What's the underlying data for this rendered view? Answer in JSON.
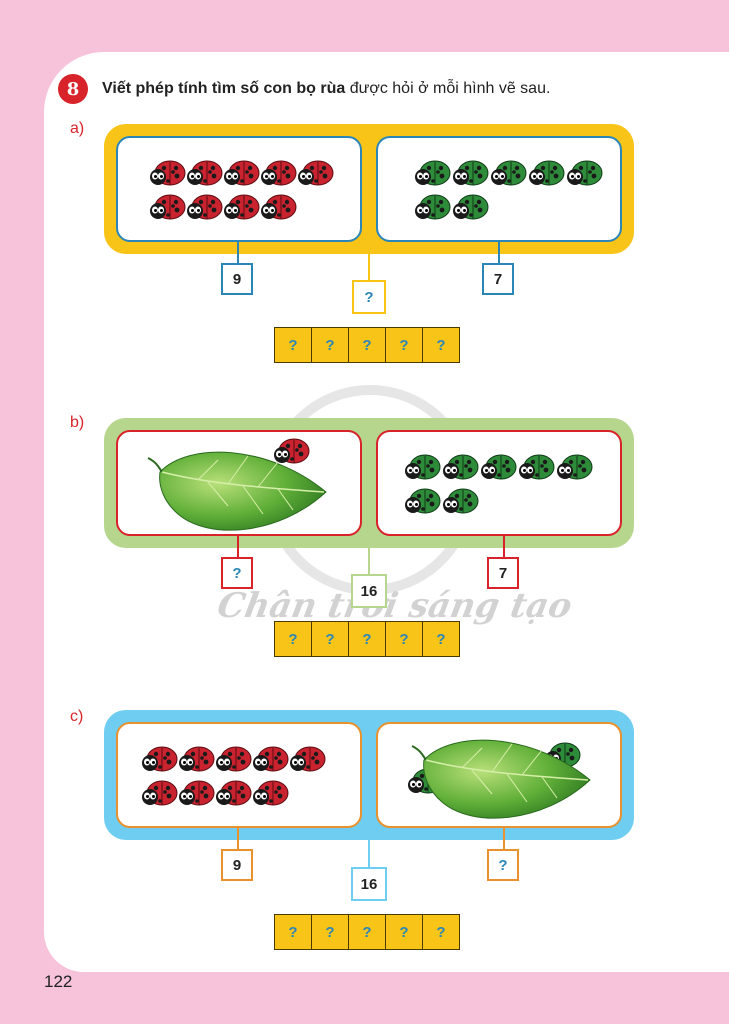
{
  "task": {
    "number": "8",
    "instruction_bold": "Viết phép tính tìm số con bọ rùa",
    "instruction_rest": " được hỏi ở mỗi hình vẽ sau."
  },
  "watermark": "Chân trời sáng tạo",
  "page_number": "122",
  "colors": {
    "background_pink": "#f6c3da",
    "frame_a": "#f8c418",
    "frame_b": "#b6d68e",
    "frame_c": "#6ecdf0",
    "red_ladybug": "#c9232f",
    "green_ladybug": "#2e8b3a",
    "task_badge": "#d8232a"
  },
  "parts": [
    {
      "label": "a)",
      "left_count_label": "9",
      "right_count_label": "7",
      "total_label": "?",
      "left_panel": {
        "red_ladybugs": 9
      },
      "right_panel": {
        "green_ladybugs": 7
      },
      "answer_cells": [
        "?",
        "?",
        "?",
        "?",
        "?"
      ]
    },
    {
      "label": "b)",
      "left_count_label": "?",
      "right_count_label": "7",
      "total_label": "16",
      "left_panel": {
        "leaf": true,
        "red_ladybugs_visible": 1
      },
      "right_panel": {
        "green_ladybugs": 7
      },
      "answer_cells": [
        "?",
        "?",
        "?",
        "?",
        "?"
      ]
    },
    {
      "label": "c)",
      "left_count_label": "9",
      "right_count_label": "?",
      "total_label": "16",
      "left_panel": {
        "red_ladybugs": 9
      },
      "right_panel": {
        "leaf": true,
        "green_ladybugs_visible": 2
      },
      "answer_cells": [
        "?",
        "?",
        "?",
        "?",
        "?"
      ]
    }
  ]
}
